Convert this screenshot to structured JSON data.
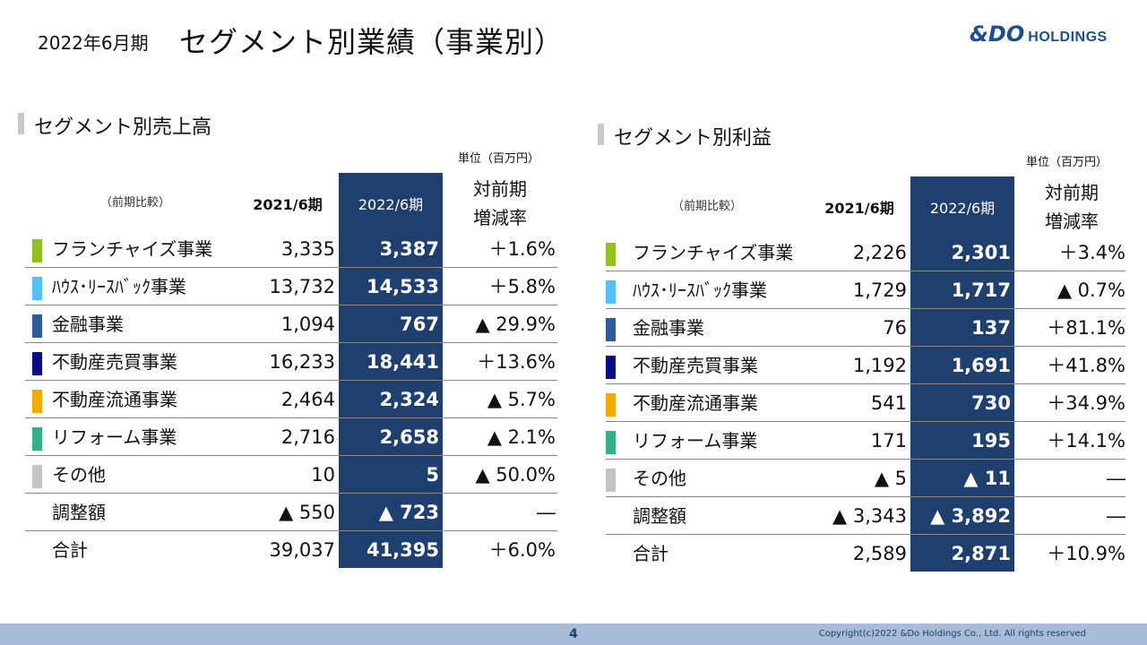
{
  "header": {
    "period": "2022年6月期",
    "title": "セグメント別業績（事業別）",
    "logo_mark": "&DO",
    "logo_word": "HOLDINGS"
  },
  "sales": {
    "title": "セグメント別売上高",
    "unit": "単位（百万円）",
    "compare_label": "（前期比較）",
    "col_prev": "2021/6期",
    "col_curr": "2022/6期",
    "col_change_1": "対前期",
    "col_change_2": "増減率",
    "rows": [
      {
        "label": "フランチャイズ事業",
        "color": "#93c01f",
        "prev": "3,335",
        "curr": "3,387",
        "change": "＋1.6%"
      },
      {
        "label": "ﾊｳｽ･ﾘｰｽﾊﾞｯｸ事業",
        "color": "#4fc3f7",
        "prev": "13,732",
        "curr": "14,533",
        "change": "＋5.8%"
      },
      {
        "label": "金融事業",
        "color": "#2e5c9a",
        "prev": "1,094",
        "curr": "767",
        "change": "▲ 29.9%"
      },
      {
        "label": "不動産売買事業",
        "color": "#0a0a8c",
        "prev": "16,233",
        "curr": "18,441",
        "change": "＋13.6%"
      },
      {
        "label": "不動産流通事業",
        "color": "#f5a800",
        "prev": "2,464",
        "curr": "2,324",
        "change": "▲ 5.7%"
      },
      {
        "label": "リフォーム事業",
        "color": "#33b08c",
        "prev": "2,716",
        "curr": "2,658",
        "change": "▲ 2.1%"
      },
      {
        "label": "その他",
        "color": "#c4c4c4",
        "prev": "10",
        "curr": "5",
        "change": "▲ 50.0%"
      },
      {
        "label": "調整額",
        "color": "",
        "prev": "▲ 550",
        "curr": "▲ 723",
        "change": "―"
      },
      {
        "label": "合計",
        "color": "",
        "prev": "39,037",
        "curr": "41,395",
        "change": "＋6.0%"
      }
    ]
  },
  "profit": {
    "title": "セグメント別利益",
    "unit": "単位（百万円）",
    "compare_label": "（前期比較）",
    "col_prev": "2021/6期",
    "col_curr": "2022/6期",
    "col_change_1": "対前期",
    "col_change_2": "増減率",
    "rows": [
      {
        "label": "フランチャイズ事業",
        "color": "#93c01f",
        "prev": "2,226",
        "curr": "2,301",
        "change": "＋3.4%"
      },
      {
        "label": "ﾊｳｽ･ﾘｰｽﾊﾞｯｸ事業",
        "color": "#4fc3f7",
        "prev": "1,729",
        "curr": "1,717",
        "change": "▲ 0.7%"
      },
      {
        "label": "金融事業",
        "color": "#2e5c9a",
        "prev": "76",
        "curr": "137",
        "change": "＋81.1%"
      },
      {
        "label": "不動産売買事業",
        "color": "#0a0a8c",
        "prev": "1,192",
        "curr": "1,691",
        "change": "＋41.8%"
      },
      {
        "label": "不動産流通事業",
        "color": "#f5a800",
        "prev": "541",
        "curr": "730",
        "change": "＋34.9%"
      },
      {
        "label": "リフォーム事業",
        "color": "#33b08c",
        "prev": "171",
        "curr": "195",
        "change": "＋14.1%"
      },
      {
        "label": "その他",
        "color": "#c4c4c4",
        "prev": "▲ 5",
        "curr": "▲ 11",
        "change": "―"
      },
      {
        "label": "調整額",
        "color": "",
        "prev": "▲ 3,343",
        "curr": "▲ 3,892",
        "change": "―"
      },
      {
        "label": "合計",
        "color": "",
        "prev": "2,589",
        "curr": "2,871",
        "change": "＋10.9%"
      }
    ]
  },
  "footer": {
    "page": "4",
    "copyright": "Copyright(c)2022 &Do Holdings Co., Ltd. All rights reserved"
  },
  "colors": {
    "highlight_column": "#1f3f6e",
    "footer_bar": "#a7bcd6"
  }
}
